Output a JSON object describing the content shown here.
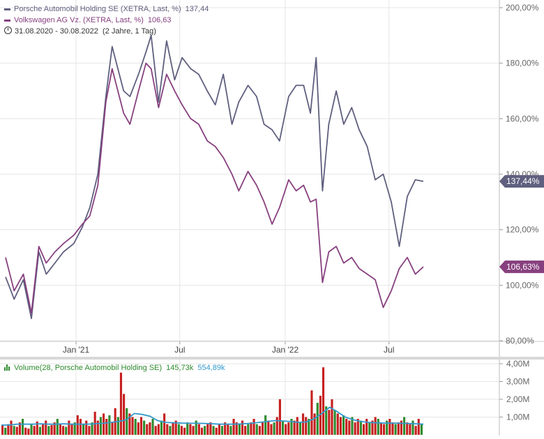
{
  "legend": {
    "porsche": {
      "label": "Porsche Automobil Holding SE (XETRA, Last, %)",
      "value": "137,44"
    },
    "vw": {
      "label": "Volkswagen AG Vz. (XETRA, Last, %)",
      "value": "106,63"
    },
    "range": {
      "icon": "clock-icon",
      "text": "31.08.2020 - 30.08.2022",
      "duration": "(2 Jahre, 1 Tag)"
    }
  },
  "volume_legend": {
    "icon": "bar-chart-icon",
    "label": "Volume(28, Porsche Automobil Holding SE)",
    "value1": "145,73k",
    "value2": "554,89k"
  },
  "colors": {
    "porsche": "#5f5f7f",
    "vw": "#87407f",
    "volume_up": "#2e8b2e",
    "volume_down": "#c62020",
    "volume_avg": "#3399cc",
    "grid": "#e6e6e6"
  },
  "chart_data": [
    {
      "type": "line",
      "x_ticks": [
        "Jan '21",
        "Jul",
        "Jan '22",
        "Jul"
      ],
      "y_ticks": [
        "80,00%",
        "100,00%",
        "120,00%",
        "140,00%",
        "160,00%",
        "180,00%",
        "200,00%"
      ],
      "ylim": [
        80,
        205
      ],
      "x_range": [
        "2020-08-31",
        "2022-08-30"
      ],
      "series": [
        {
          "name": "Porsche Automobil Holding SE (XETRA, Last, %)",
          "last_label": "137,44%",
          "x": [
            "2020-08-31",
            "2020-09-15",
            "2020-10-01",
            "2020-10-15",
            "2020-10-28",
            "2020-11-10",
            "2020-11-25",
            "2020-12-10",
            "2020-12-28",
            "2021-01-12",
            "2021-01-25",
            "2021-02-08",
            "2021-02-22",
            "2021-03-05",
            "2021-03-15",
            "2021-03-25",
            "2021-04-05",
            "2021-04-20",
            "2021-05-03",
            "2021-05-12",
            "2021-05-25",
            "2021-06-08",
            "2021-06-22",
            "2021-07-05",
            "2021-07-20",
            "2021-08-03",
            "2021-08-18",
            "2021-09-01",
            "2021-09-15",
            "2021-09-30",
            "2021-10-12",
            "2021-10-28",
            "2021-11-12",
            "2021-11-25",
            "2021-12-09",
            "2021-12-22",
            "2022-01-07",
            "2022-01-20",
            "2022-02-02",
            "2022-02-14",
            "2022-02-24",
            "2022-03-07",
            "2022-03-18",
            "2022-03-31",
            "2022-04-13",
            "2022-04-27",
            "2022-05-10",
            "2022-05-24",
            "2022-06-07",
            "2022-06-21",
            "2022-07-05",
            "2022-07-19",
            "2022-08-02",
            "2022-08-16",
            "2022-08-30"
          ],
          "values": [
            103,
            95,
            102,
            88,
            112,
            104,
            108,
            112,
            115,
            121,
            128,
            140,
            168,
            186,
            178,
            170,
            168,
            176,
            184,
            190,
            166,
            188,
            174,
            182,
            178,
            176,
            170,
            165,
            176,
            158,
            166,
            172,
            168,
            158,
            156,
            152,
            168,
            172,
            172,
            162,
            182,
            134,
            158,
            170,
            158,
            164,
            156,
            150,
            138,
            140,
            130,
            114,
            132,
            138,
            137.44
          ]
        },
        {
          "name": "Volkswagen AG Vz. (XETRA, Last, %)",
          "last_label": "106,63%",
          "x": [
            "2020-08-31",
            "2020-09-15",
            "2020-10-01",
            "2020-10-15",
            "2020-10-28",
            "2020-11-10",
            "2020-11-25",
            "2020-12-10",
            "2020-12-28",
            "2021-01-12",
            "2021-01-25",
            "2021-02-08",
            "2021-02-22",
            "2021-03-05",
            "2021-03-15",
            "2021-03-25",
            "2021-04-05",
            "2021-04-20",
            "2021-05-03",
            "2021-05-12",
            "2021-05-25",
            "2021-06-08",
            "2021-06-22",
            "2021-07-05",
            "2021-07-20",
            "2021-08-03",
            "2021-08-18",
            "2021-09-01",
            "2021-09-15",
            "2021-09-30",
            "2021-10-12",
            "2021-10-28",
            "2021-11-12",
            "2021-11-25",
            "2021-12-09",
            "2021-12-22",
            "2022-01-07",
            "2022-01-20",
            "2022-02-02",
            "2022-02-14",
            "2022-02-24",
            "2022-03-07",
            "2022-03-18",
            "2022-03-31",
            "2022-04-13",
            "2022-04-27",
            "2022-05-10",
            "2022-05-24",
            "2022-06-07",
            "2022-06-21",
            "2022-07-05",
            "2022-07-19",
            "2022-08-02",
            "2022-08-16",
            "2022-08-30"
          ],
          "values": [
            110,
            98,
            104,
            90,
            114,
            108,
            112,
            115,
            118,
            122,
            125,
            136,
            166,
            178,
            170,
            162,
            158,
            170,
            180,
            178,
            164,
            176,
            170,
            165,
            160,
            158,
            152,
            150,
            146,
            140,
            134,
            141,
            136,
            130,
            122,
            128,
            138,
            134,
            136,
            130,
            131,
            101,
            112,
            114,
            108,
            110,
            106,
            104,
            102,
            92,
            98,
            106,
            110,
            104,
            106.63
          ]
        }
      ]
    },
    {
      "type": "bar",
      "title": "Volume(28, Porsche Automobil Holding SE)",
      "y_ticks": [
        "1,00M",
        "2,00M",
        "3,00M",
        "4,00M"
      ],
      "ylim": [
        0,
        4.2
      ],
      "bars_m": [
        0.55,
        0.4,
        0.6,
        0.8,
        0.5,
        0.45,
        0.7,
        0.9,
        0.4,
        0.35,
        0.6,
        0.5,
        0.75,
        0.45,
        0.6,
        0.8,
        0.5,
        0.55,
        0.7,
        0.9,
        0.6,
        0.5,
        0.45,
        0.8,
        0.6,
        0.7,
        1.1,
        0.9,
        0.6,
        0.8,
        0.5,
        0.7,
        1.3,
        0.8,
        1.0,
        1.2,
        0.9,
        1.1,
        0.7,
        1.5,
        1.0,
        3.5,
        2.3,
        1.5,
        1.2,
        1.0,
        0.9,
        0.7,
        1.0,
        0.8,
        0.6,
        0.7,
        0.9,
        0.5,
        0.6,
        0.8,
        1.2,
        0.6,
        0.5,
        0.7,
        0.8,
        0.6,
        0.5,
        0.4,
        0.7,
        0.6,
        0.5,
        0.8,
        0.6,
        0.4,
        0.5,
        0.6,
        0.7,
        0.5,
        0.4,
        0.6,
        0.5,
        0.7,
        0.6,
        0.5,
        0.9,
        0.7,
        0.6,
        0.8,
        0.5,
        0.6,
        0.7,
        0.9,
        0.6,
        0.5,
        0.7,
        1.1,
        0.8,
        0.6,
        0.7,
        1.0,
        2.0,
        0.8,
        0.6,
        0.7,
        0.9,
        0.8,
        1.0,
        0.7,
        1.2,
        1.0,
        0.9,
        2.5,
        1.2,
        1.8,
        2.2,
        3.8,
        1.6,
        1.4,
        2.0,
        1.4,
        1.2,
        1.0,
        1.1,
        0.9,
        0.8,
        1.0,
        0.7,
        0.9,
        0.8,
        0.6,
        0.9,
        0.7,
        0.8,
        1.0,
        0.9,
        0.7,
        0.6,
        0.8,
        0.9,
        0.7,
        0.6,
        0.7,
        0.8,
        1.0,
        0.7,
        0.6,
        0.8,
        0.5,
        0.9,
        0.6
      ],
      "avg_m": [
        0.55,
        0.55,
        0.6,
        0.6,
        0.6,
        0.62,
        0.6,
        0.6,
        0.62,
        0.6,
        0.6,
        0.6,
        0.62,
        0.65,
        0.7,
        0.75,
        0.85,
        1.2,
        1.15,
        1.05,
        0.8,
        0.7,
        0.68,
        0.66,
        0.65,
        0.65,
        0.64,
        0.62,
        0.6,
        0.6,
        0.6,
        0.62,
        0.65,
        0.7,
        0.75,
        0.8,
        0.78,
        0.75,
        0.7,
        0.72,
        0.9,
        1.2,
        1.55,
        1.3,
        1.0,
        0.85,
        0.75,
        0.7,
        0.68,
        0.66,
        0.66,
        0.65,
        0.64,
        0.62,
        0.6
      ]
    }
  ]
}
